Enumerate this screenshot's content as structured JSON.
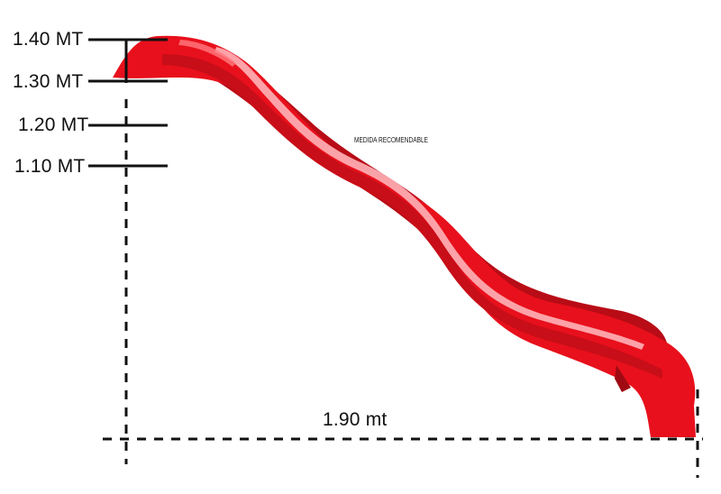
{
  "height_labels": [
    "1.40 MT",
    "1.30 MT",
    "1.20 MT",
    "1.10 MT"
  ],
  "recommended_note": "MEDIDA RECOMENDABLE",
  "length_label": "1.90 mt",
  "colors": {
    "slide_red": "#e8101c",
    "slide_dark": "#b80c16",
    "slide_light": "#ff5a62",
    "ink": "#111111"
  }
}
